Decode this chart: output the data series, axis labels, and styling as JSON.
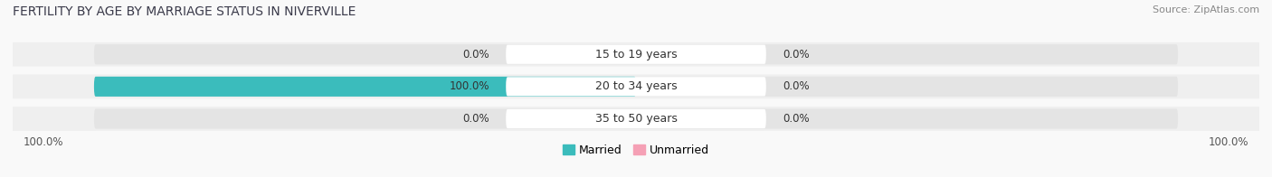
{
  "title": "FERTILITY BY AGE BY MARRIAGE STATUS IN NIVERVILLE",
  "source": "Source: ZipAtlas.com",
  "categories": [
    "15 to 19 years",
    "20 to 34 years",
    "35 to 50 years"
  ],
  "married_values": [
    0.0,
    100.0,
    0.0
  ],
  "unmarried_values": [
    0.0,
    0.0,
    0.0
  ],
  "married_color": "#3bbcbc",
  "unmarried_color": "#f5a0b5",
  "bar_bg_color": "#e4e4e4",
  "title_color": "#3a3a4a",
  "source_color": "#888888",
  "label_color": "#333333",
  "bottom_label_color": "#555555",
  "background_color": "#f9f9f9",
  "bar_row_bg": "#efefef",
  "title_fontsize": 10,
  "source_fontsize": 8,
  "label_fontsize": 8.5,
  "category_fontsize": 9,
  "legend_fontsize": 9,
  "bottom_left_label": "100.0%",
  "bottom_right_label": "100.0%"
}
